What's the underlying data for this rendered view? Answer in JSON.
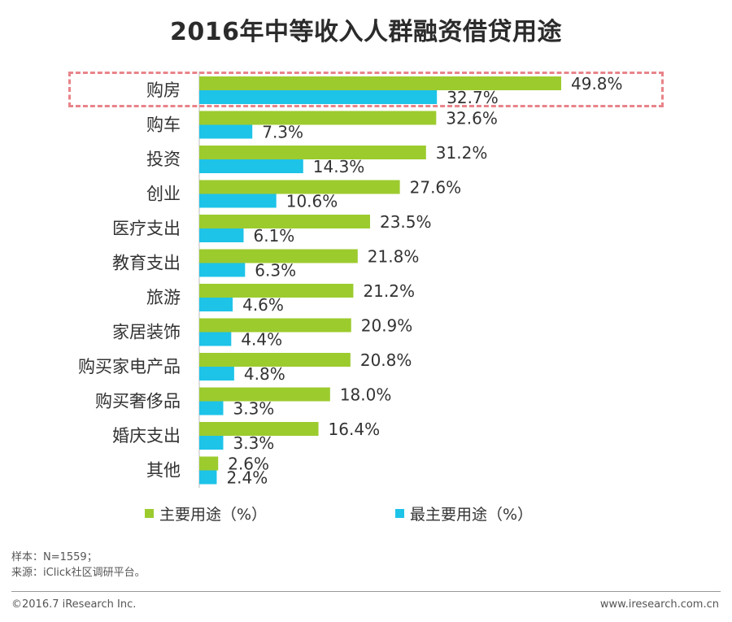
{
  "chart_data": {
    "type": "bar",
    "orientation": "horizontal",
    "title": "2016年中等收入人群融资借贷用途",
    "categories": [
      "购房",
      "购车",
      "投资",
      "创业",
      "医疗支出",
      "教育支出",
      "旅游",
      "家居装饰",
      "购买家电产品",
      "购买奢侈品",
      "婚庆支出",
      "其他"
    ],
    "series": [
      {
        "name": "主要用途（%）",
        "color": "#9ccb2e",
        "values": [
          49.8,
          32.6,
          31.2,
          27.6,
          23.5,
          21.8,
          21.2,
          20.9,
          20.8,
          18.0,
          16.4,
          2.6
        ]
      },
      {
        "name": "最主要用途（%）",
        "color": "#1ec3e8",
        "values": [
          32.7,
          7.3,
          14.3,
          10.6,
          6.1,
          6.3,
          4.6,
          4.4,
          4.8,
          3.3,
          3.3,
          2.4
        ]
      }
    ],
    "value_suffix": "%",
    "highlighted_category": "购房",
    "legend_position": "bottom"
  },
  "legend": {
    "primary": "主要用途（%）",
    "secondary": "最主要用途（%）"
  },
  "notes": {
    "sample": "样本：N=1559；",
    "source": "来源：iClick社区调研平台。"
  },
  "footer": {
    "copyright": "©2016.7 iResearch  Inc.",
    "website": "www.iresearch.com.cn"
  }
}
